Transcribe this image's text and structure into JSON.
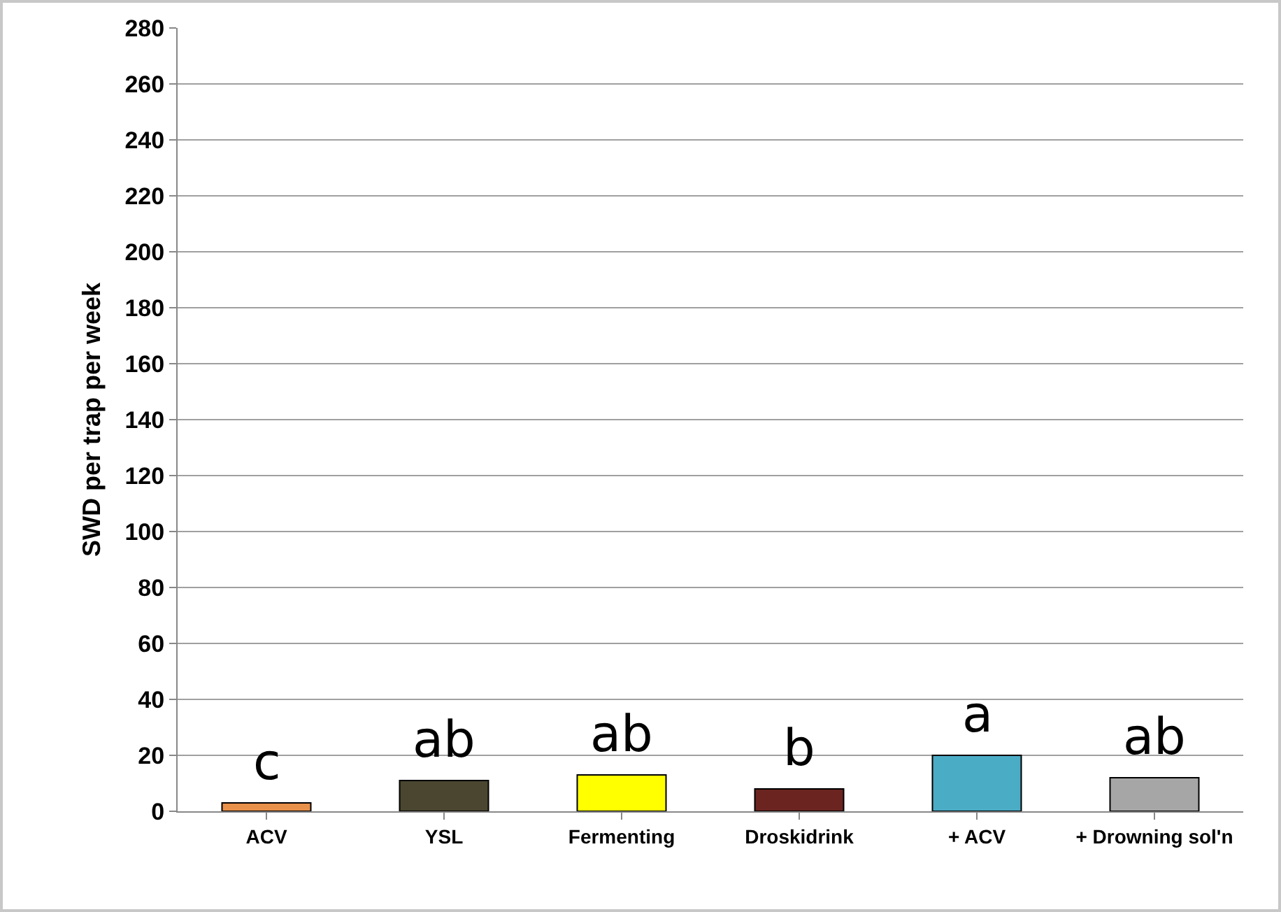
{
  "chart_data": {
    "type": "bar",
    "ylabel": "SWD per trap per week",
    "categories": [
      "ACV",
      "YSL",
      "Fermenting",
      "Droskidrink",
      "+ ACV",
      "+ Drowning sol'n"
    ],
    "values": [
      3,
      11,
      13,
      8,
      20,
      12
    ],
    "colors": [
      "#e8914a",
      "#4a4630",
      "#ffff00",
      "#6b2420",
      "#4bacc6",
      "#a6a6a6"
    ],
    "ylim": [
      0,
      280
    ],
    "yticks": [
      0,
      20,
      40,
      60,
      80,
      100,
      120,
      140,
      160,
      180,
      200,
      220,
      240,
      260,
      280
    ],
    "grid": "y",
    "annotations": [
      {
        "text": "c",
        "x": "ACV",
        "y": 3
      },
      {
        "text": "ab",
        "x": "YSL",
        "y": 11
      },
      {
        "text": "ab",
        "x": "Fermenting",
        "y": 13
      },
      {
        "text": "b",
        "x": "Droskidrink",
        "y": 8
      },
      {
        "text": "a",
        "x": "+ ACV",
        "y": 20
      },
      {
        "text": "ab",
        "x": "+ Drowning sol'n",
        "y": 12
      }
    ]
  }
}
